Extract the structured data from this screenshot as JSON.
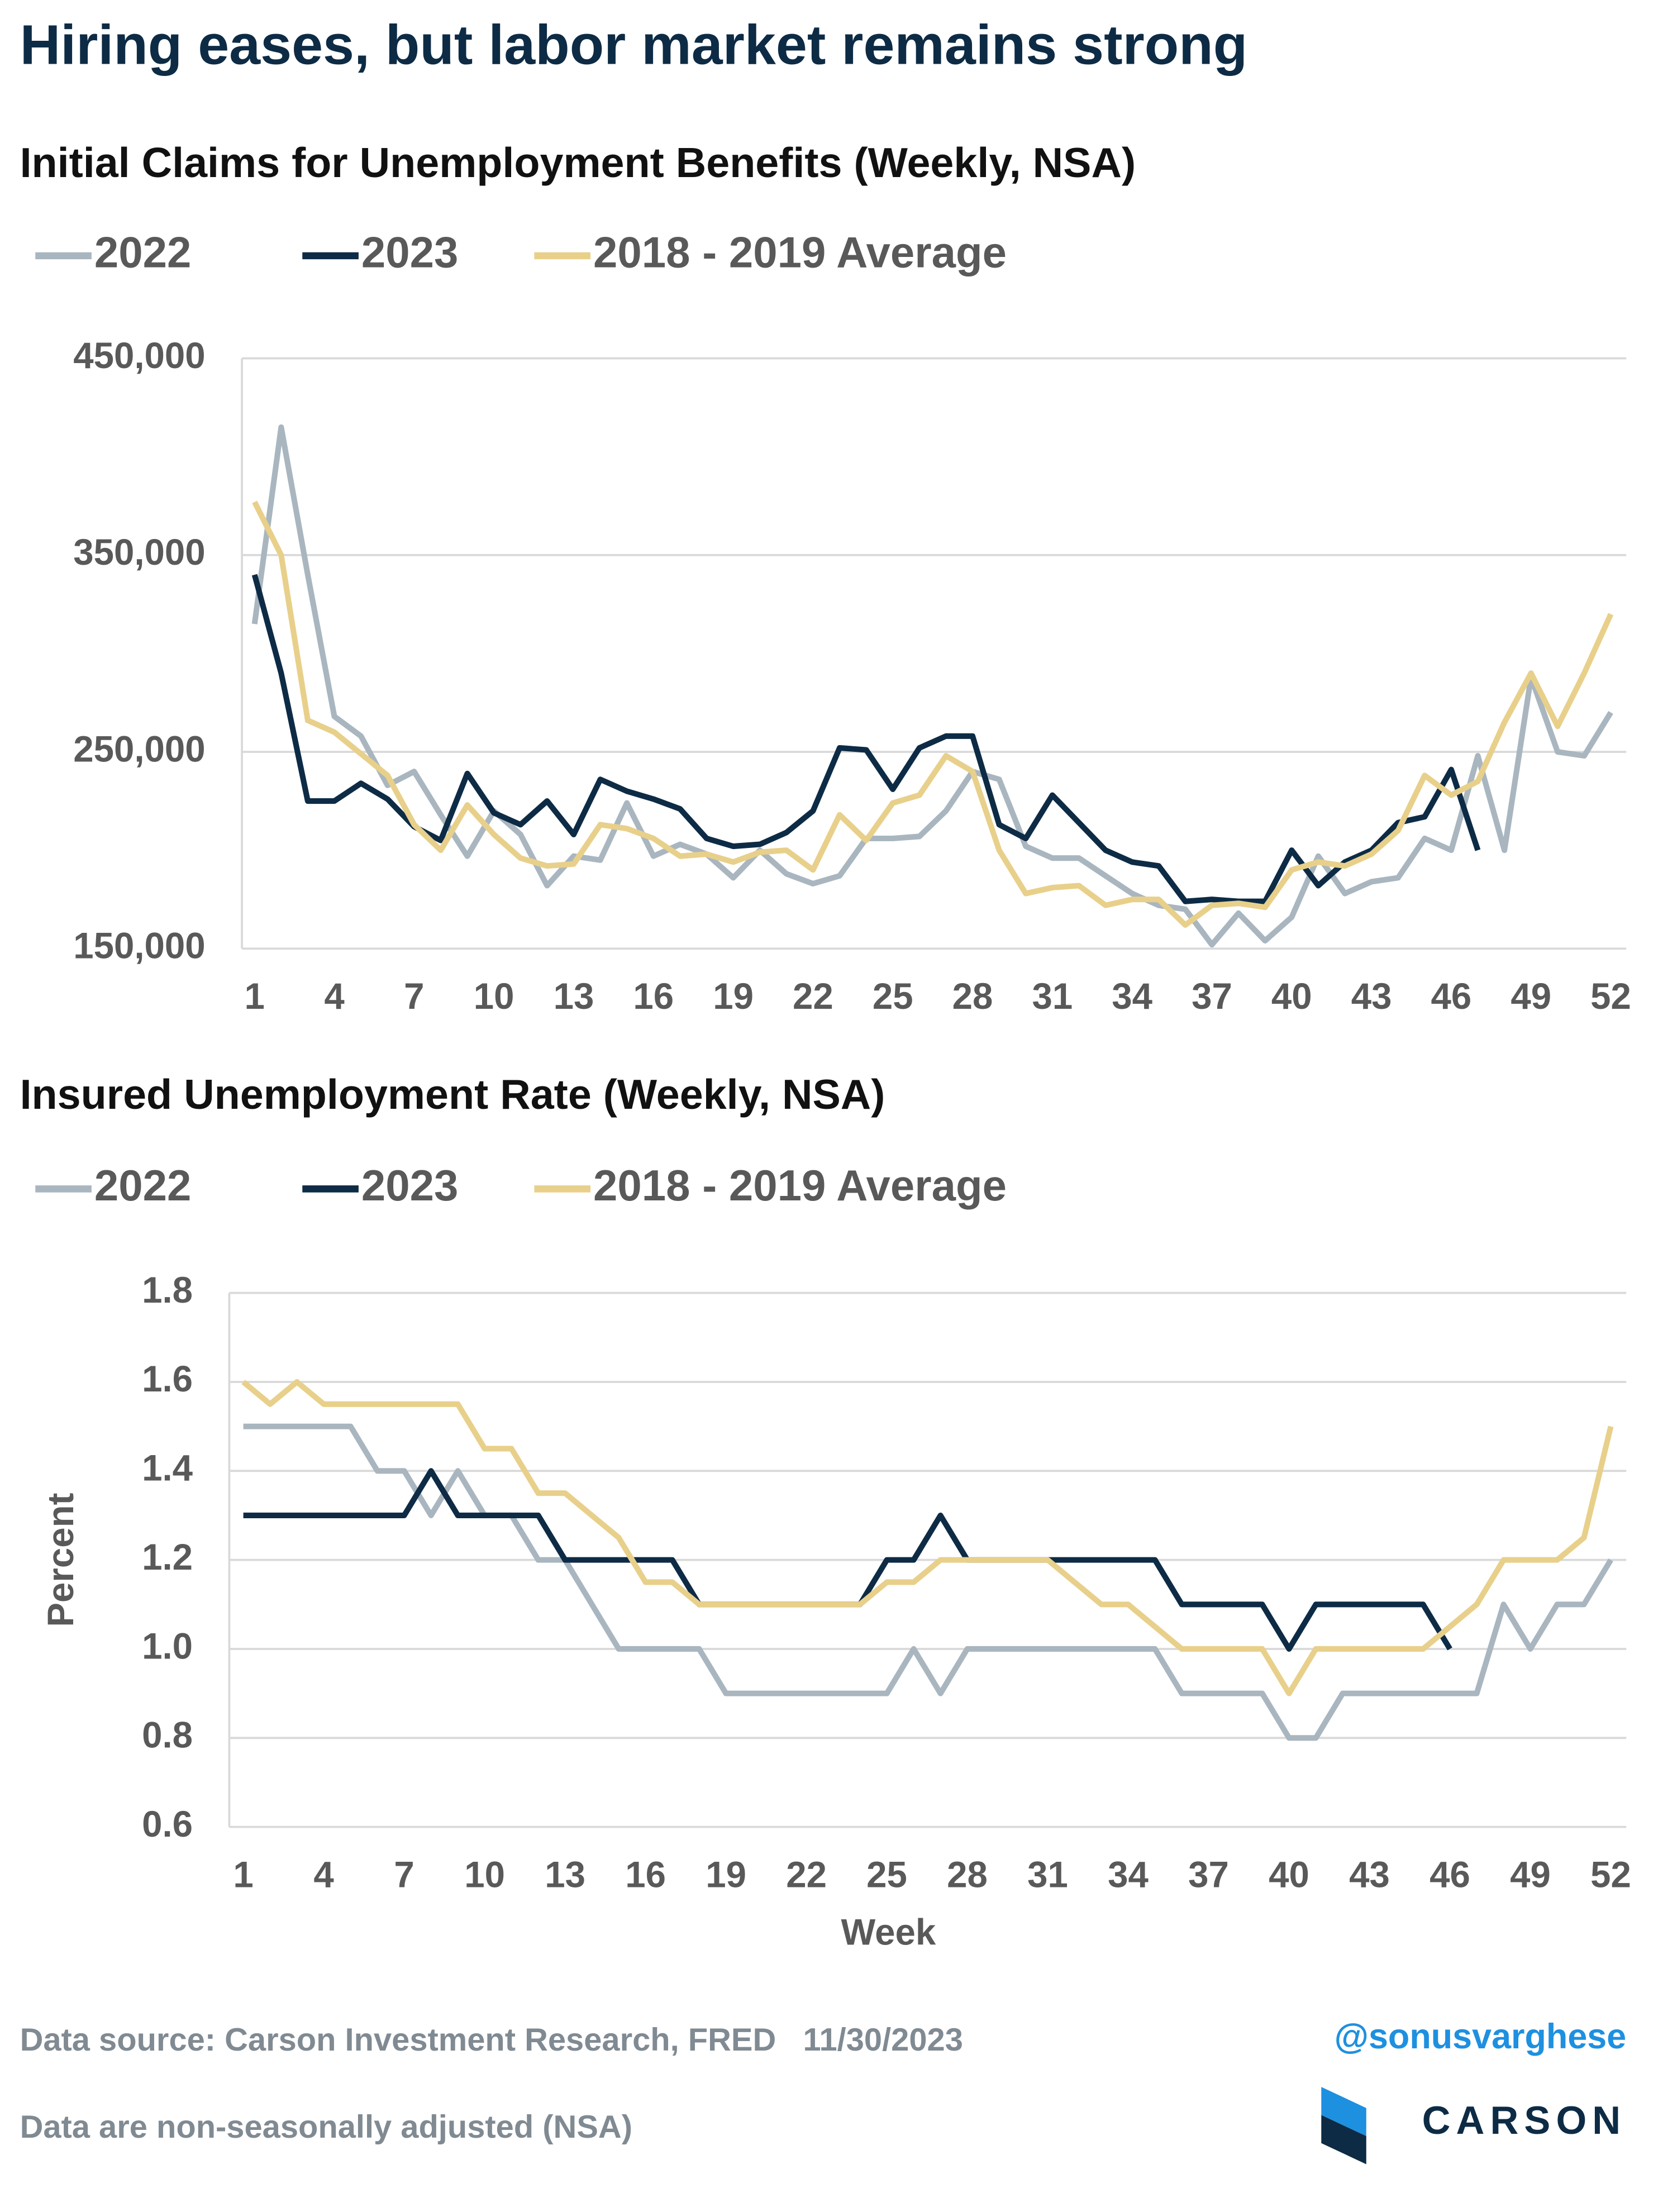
{
  "title": "Hiring eases, but labor market remains strong",
  "chart_data": [
    {
      "type": "line",
      "title": "Initial Claims for Unemployment Benefits (Weekly, NSA)",
      "x": [
        1,
        2,
        3,
        4,
        5,
        6,
        7,
        8,
        9,
        10,
        11,
        12,
        13,
        14,
        15,
        16,
        17,
        18,
        19,
        20,
        21,
        22,
        23,
        24,
        25,
        26,
        27,
        28,
        29,
        30,
        31,
        32,
        33,
        34,
        35,
        36,
        37,
        38,
        39,
        40,
        41,
        42,
        43,
        44,
        45,
        46,
        47,
        48,
        49,
        50,
        51,
        52
      ],
      "xlim": [
        1,
        52
      ],
      "xticks": [
        1,
        4,
        7,
        10,
        13,
        16,
        19,
        22,
        25,
        28,
        31,
        34,
        37,
        40,
        43,
        46,
        49,
        52
      ],
      "ylim": [
        150000,
        450000
      ],
      "yticks": [
        {
          "value": 150000,
          "label": "150,000"
        },
        {
          "value": 250000,
          "label": "250,000"
        },
        {
          "value": 350000,
          "label": "350,000"
        },
        {
          "value": 450000,
          "label": "450,000"
        }
      ],
      "grid": true,
      "series": [
        {
          "name": "2022",
          "color": "#a9b6bf",
          "values": [
            315000,
            415000,
            340000,
            268000,
            258000,
            233000,
            240000,
            218000,
            197000,
            220000,
            208000,
            182000,
            197000,
            195000,
            224000,
            197000,
            203000,
            198000,
            186000,
            200000,
            188000,
            183000,
            187000,
            206000,
            206000,
            207000,
            220000,
            240000,
            236000,
            202000,
            196000,
            196000,
            187000,
            178000,
            172000,
            170000,
            152000,
            168000,
            154000,
            166000,
            197000,
            178000,
            184000,
            186000,
            206000,
            200000,
            248000,
            200000,
            288000,
            250000,
            248000,
            270000
          ]
        },
        {
          "name": "2023",
          "color": "#0d2b45",
          "values": [
            340000,
            290000,
            225000,
            225000,
            234000,
            226000,
            212000,
            205000,
            239000,
            219000,
            213000,
            225000,
            208000,
            236000,
            230000,
            226000,
            221000,
            206000,
            202000,
            203000,
            209000,
            220000,
            252000,
            251000,
            231000,
            252000,
            258000,
            258000,
            213000,
            206000,
            228000,
            214000,
            200000,
            194000,
            192000,
            174000,
            175000,
            174000,
            174000,
            200000,
            182000,
            194000,
            200000,
            214000,
            217000,
            241000,
            200000,
            null,
            null,
            null,
            null,
            null
          ]
        },
        {
          "name": "2018 - 2019 Average",
          "color": "#e8d08b",
          "values": [
            377000,
            350000,
            266000,
            260000,
            249000,
            238000,
            213000,
            200000,
            223000,
            208000,
            196000,
            192000,
            193000,
            213000,
            211000,
            206000,
            197000,
            198000,
            194000,
            199000,
            200000,
            190000,
            218000,
            205000,
            224000,
            228000,
            248000,
            240000,
            200000,
            178000,
            181000,
            182000,
            172000,
            175000,
            175000,
            162000,
            172000,
            173000,
            171000,
            190000,
            194000,
            192000,
            198000,
            210000,
            238000,
            228000,
            235000,
            265000,
            290000,
            263000,
            290000,
            320000
          ]
        }
      ]
    },
    {
      "type": "line",
      "title": "Insured Unemployment Rate (Weekly, NSA)",
      "x_label": "Week",
      "y_label": "Percent",
      "x": [
        1,
        2,
        3,
        4,
        5,
        6,
        7,
        8,
        9,
        10,
        11,
        12,
        13,
        14,
        15,
        16,
        17,
        18,
        19,
        20,
        21,
        22,
        23,
        24,
        25,
        26,
        27,
        28,
        29,
        30,
        31,
        32,
        33,
        34,
        35,
        36,
        37,
        38,
        39,
        40,
        41,
        42,
        43,
        44,
        45,
        46,
        47,
        48,
        49,
        50,
        51,
        52
      ],
      "xlim": [
        1,
        52
      ],
      "xticks": [
        1,
        4,
        7,
        10,
        13,
        16,
        19,
        22,
        25,
        28,
        31,
        34,
        37,
        40,
        43,
        46,
        49,
        52
      ],
      "ylim": [
        0.6,
        1.8
      ],
      "yticks": [
        0.6,
        0.8,
        {
          "value": 1,
          "label": "1.0"
        },
        1.2,
        1.4,
        1.6,
        1.8
      ],
      "grid": true,
      "series": [
        {
          "name": "2022",
          "color": "#a9b6bf",
          "values": [
            1.5,
            1.5,
            1.5,
            1.5,
            1.5,
            1.4,
            1.4,
            1.3,
            1.4,
            1.3,
            1.3,
            1.2,
            1.2,
            1.1,
            1.0,
            1.0,
            1.0,
            1.0,
            0.9,
            0.9,
            0.9,
            0.9,
            0.9,
            0.9,
            0.9,
            1.0,
            0.9,
            1.0,
            1.0,
            1.0,
            1.0,
            1.0,
            1.0,
            1.0,
            1.0,
            0.9,
            0.9,
            0.9,
            0.9,
            0.8,
            0.8,
            0.9,
            0.9,
            0.9,
            0.9,
            0.9,
            0.9,
            1.1,
            1.0,
            1.1,
            1.1,
            1.2
          ]
        },
        {
          "name": "2023",
          "color": "#0d2b45",
          "values": [
            1.3,
            1.3,
            1.3,
            1.3,
            1.3,
            1.3,
            1.3,
            1.4,
            1.3,
            1.3,
            1.3,
            1.3,
            1.2,
            1.2,
            1.2,
            1.2,
            1.2,
            1.1,
            1.1,
            1.1,
            1.1,
            1.1,
            1.1,
            1.1,
            1.2,
            1.2,
            1.3,
            1.2,
            1.2,
            1.2,
            1.2,
            1.2,
            1.2,
            1.2,
            1.2,
            1.1,
            1.1,
            1.1,
            1.1,
            1.0,
            1.1,
            1.1,
            1.1,
            1.1,
            1.1,
            1.0,
            null,
            null,
            null,
            null,
            null,
            null
          ]
        },
        {
          "name": "2018 - 2019 Average",
          "color": "#e8d08b",
          "values": [
            1.6,
            1.55,
            1.6,
            1.55,
            1.55,
            1.55,
            1.55,
            1.55,
            1.55,
            1.45,
            1.45,
            1.35,
            1.35,
            1.3,
            1.25,
            1.15,
            1.15,
            1.1,
            1.1,
            1.1,
            1.1,
            1.1,
            1.1,
            1.1,
            1.15,
            1.15,
            1.2,
            1.2,
            1.2,
            1.2,
            1.2,
            1.15,
            1.1,
            1.1,
            1.05,
            1.0,
            1.0,
            1.0,
            1.0,
            0.9,
            1.0,
            1.0,
            1.0,
            1.0,
            1.0,
            1.05,
            1.1,
            1.2,
            1.2,
            1.2,
            1.25,
            1.5
          ]
        }
      ]
    }
  ],
  "footer": {
    "source": "Data source: Carson Investment Research, FRED   11/30/2023",
    "note": "Data are non-seasonally adjusted (NSA)",
    "handle": "@sonusvarghese",
    "logo": "CARSON"
  }
}
